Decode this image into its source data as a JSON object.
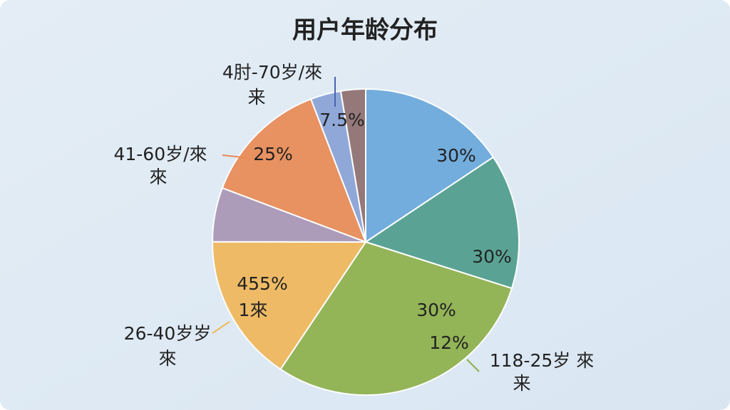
{
  "chart_data": {
    "type": "pie",
    "title": "用户年龄分布",
    "slices": [
      {
        "value": 15.6,
        "color": "#6aa8dc",
        "labels": [
          "30%"
        ]
      },
      {
        "value": 14.2,
        "color": "#4f9e8c",
        "labels": [
          "30%"
        ]
      },
      {
        "value": 29.4,
        "color": "#8db04a",
        "labels": [
          "30%",
          "12%"
        ],
        "name": [
          "118-25岁 來",
          "来"
        ]
      },
      {
        "value": 15.6,
        "color": "#f0b75a",
        "labels": [
          "455%",
          "1來"
        ],
        "name": [
          "26-40岁岁",
          "來"
        ]
      },
      {
        "value": 5.7,
        "color": "#a895b5"
      },
      {
        "value": 13.4,
        "color": "#e98a55",
        "labels": [
          "25%"
        ],
        "name": [
          "41-60岁/來",
          "來"
        ]
      },
      {
        "value": 3.2,
        "color": "#8aa3d6",
        "labels": [
          "7.5%"
        ],
        "name": [
          "4肘-70岁/來",
          "来"
        ]
      },
      {
        "value": 2.6,
        "color": "#8f7070"
      }
    ]
  }
}
